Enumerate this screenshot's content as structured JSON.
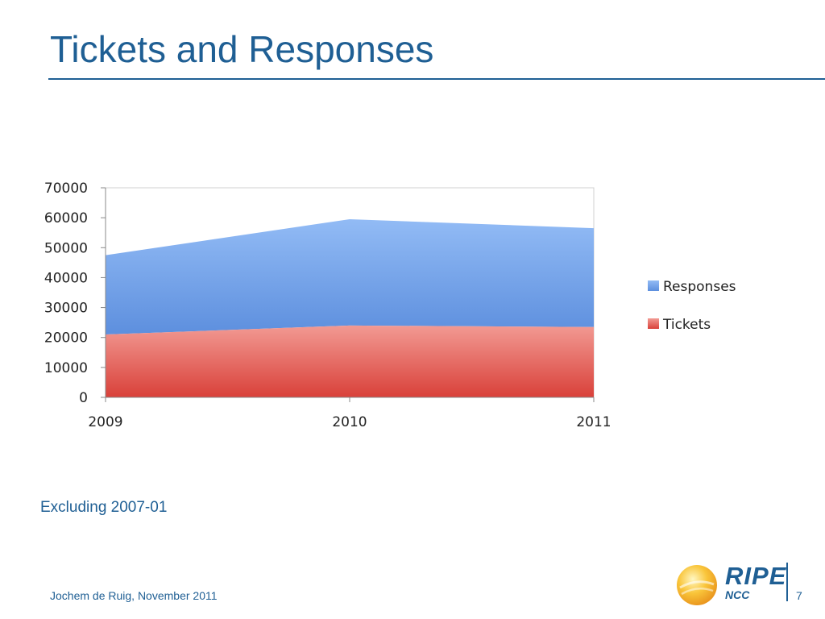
{
  "slide": {
    "title": "Tickets and Responses",
    "note": "Excluding 2007-01",
    "footer": "Jochem de Ruig, November 2011",
    "page_number": "7",
    "logo": {
      "main": "RIPE",
      "sub": "NCC"
    }
  },
  "chart_data": {
    "type": "area",
    "stacked": true,
    "categories": [
      "2009",
      "2010",
      "2011"
    ],
    "series": [
      {
        "name": "Tickets",
        "values": [
          21000,
          24000,
          23500
        ],
        "color": "#e0473f"
      },
      {
        "name": "Responses",
        "values": [
          26500,
          35500,
          33000
        ],
        "color": "#6f9ee6"
      }
    ],
    "ylim": [
      0,
      70000
    ],
    "yticks": [
      "0",
      "10000",
      "20000",
      "30000",
      "40000",
      "50000",
      "60000",
      "70000"
    ],
    "legend": [
      "Responses",
      "Tickets"
    ],
    "legend_position": "right",
    "grid": false
  }
}
